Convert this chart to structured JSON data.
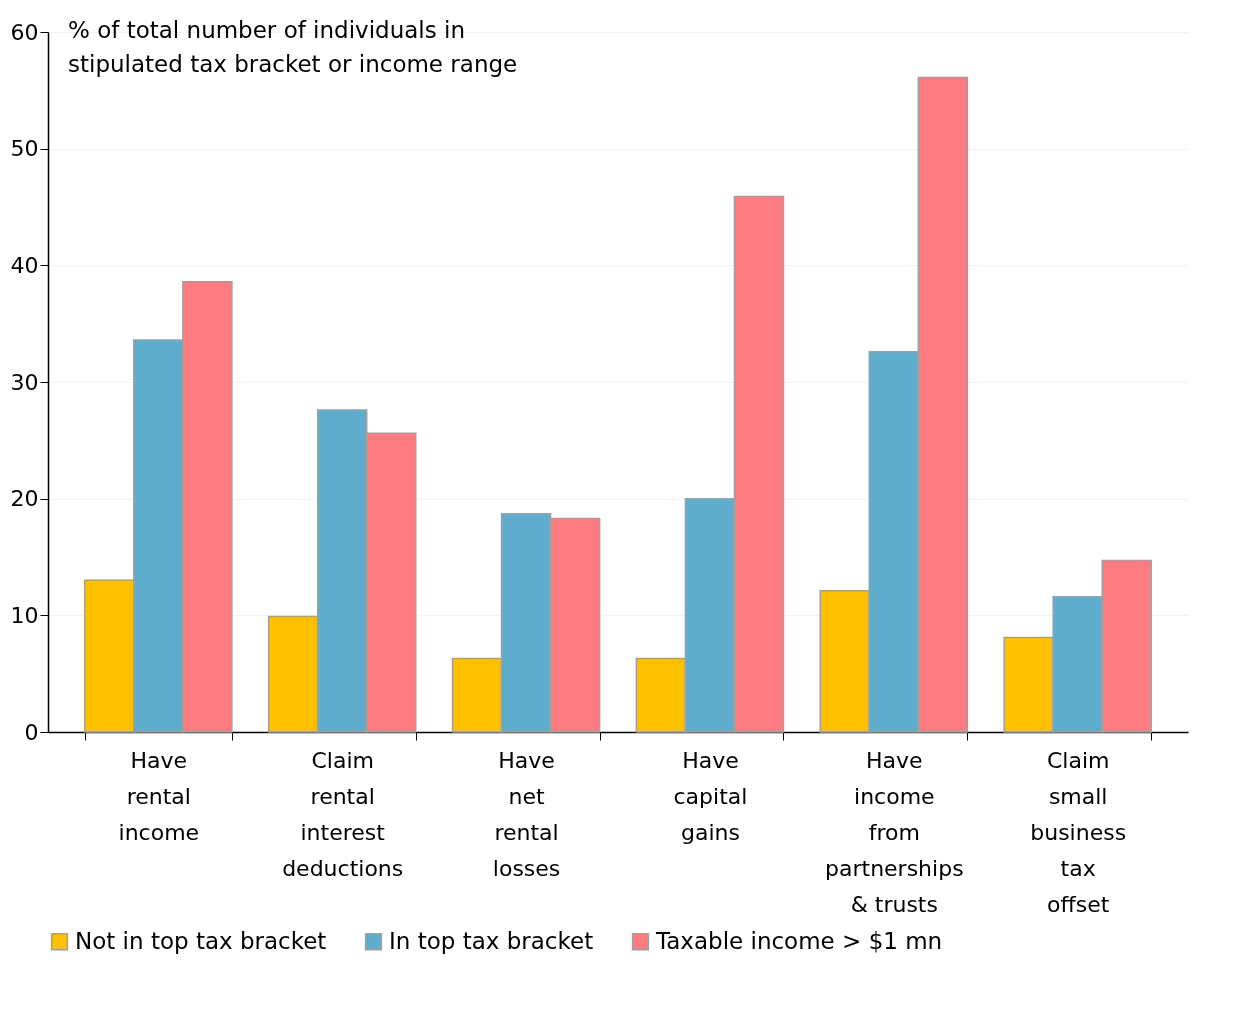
{
  "chart_data": {
    "type": "bar",
    "ylabel": "% of total number of individuals in\nstipulated tax bracket or income range",
    "categories": [
      "Have\nrental\nincome",
      "Claim\nrental\ninterest\ndeductions",
      "Have\nnet\nrental\nlosses",
      "Have\ncapital\ngains",
      "Have\nincome\nfrom\npartnerships\n& trusts",
      "Claim\nsmall\nbusiness\ntax\noffset"
    ],
    "series": [
      {
        "name": "Not in top tax bracket",
        "color": "#ffc000",
        "values": [
          13.0,
          9.9,
          6.3,
          6.3,
          12.1,
          8.1
        ]
      },
      {
        "name": "In top tax bracket",
        "color": "#5fadcc",
        "values": [
          33.6,
          27.6,
          18.7,
          20.0,
          32.6,
          11.6
        ]
      },
      {
        "name": "Taxable income > $1 mn",
        "color": "#ff7b82",
        "values": [
          38.6,
          25.6,
          18.3,
          45.9,
          56.1,
          14.7
        ]
      }
    ],
    "ylim": [
      0,
      60
    ],
    "yticks": [
      0,
      10,
      20,
      30,
      40,
      50,
      60
    ],
    "grid": "y",
    "legend": "bottom"
  }
}
